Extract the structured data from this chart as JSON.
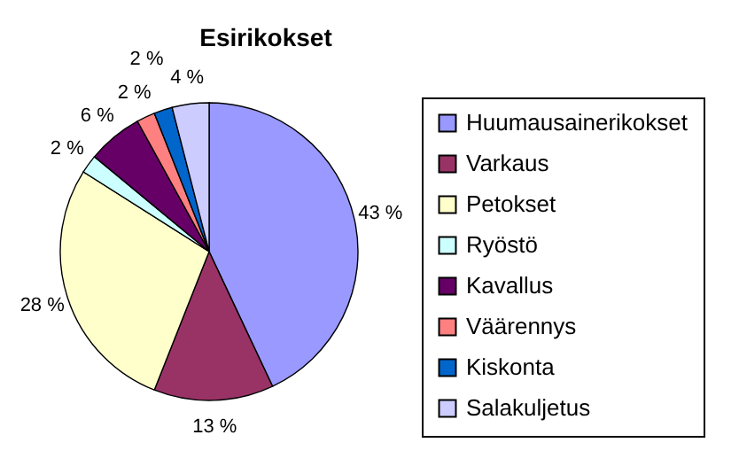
{
  "chart_data": {
    "type": "pie",
    "title": "Esirikokset",
    "categories": [
      "Huumausainerikokset",
      "Varkaus",
      "Petokset",
      "Ryöstö",
      "Kavallus",
      "Väärennys",
      "Kiskonta",
      "Salakuljetus"
    ],
    "values": [
      43,
      13,
      28,
      2,
      6,
      2,
      2,
      4
    ],
    "value_labels": [
      "43 %",
      "13 %",
      "28 %",
      "2 %",
      "6 %",
      "2 %",
      "2 %",
      "4 %"
    ],
    "colors": [
      "#9999ff",
      "#993366",
      "#ffffcc",
      "#ccffff",
      "#660066",
      "#ff8080",
      "#0066cc",
      "#ccccff"
    ],
    "legend": "right"
  }
}
